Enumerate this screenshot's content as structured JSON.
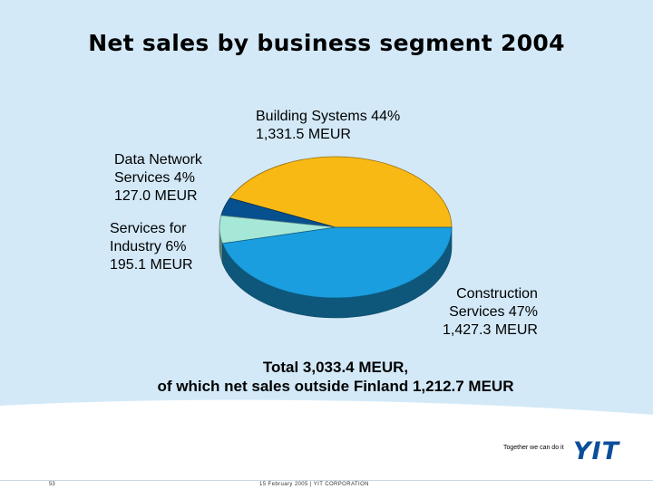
{
  "title": "Net sales by business segment 2004",
  "chart_data": {
    "type": "pie",
    "title": "Net sales by business segment 2004",
    "unit": "MEUR",
    "slices": [
      {
        "name": "Building Systems",
        "value": 1331.5,
        "percent": 44,
        "color": "#f9b915",
        "label_lines": [
          "Building Systems 44%",
          "1,331.5 MEUR"
        ]
      },
      {
        "name": "Construction Services",
        "value": 1427.3,
        "percent": 47,
        "color": "#1a9edf",
        "label_lines": [
          "Construction",
          "Services 47%",
          "1,427.3 MEUR"
        ]
      },
      {
        "name": "Services for Industry",
        "value": 195.1,
        "percent": 6,
        "color": "#a6e8d8",
        "label_lines": [
          "Services for",
          "Industry 6%",
          "195.1 MEUR"
        ]
      },
      {
        "name": "Data Network Services",
        "value": 127.0,
        "percent": 4,
        "color": "#07508f",
        "label_lines": [
          "Data Network",
          "Services 4%",
          "127.0 MEUR"
        ]
      }
    ]
  },
  "total": {
    "line1": "Total 3,033.4 MEUR,",
    "line2": "of which net sales outside Finland 1,212.7 MEUR"
  },
  "footer": {
    "tagline": "Together we can do it",
    "logo": "YIT",
    "page_number": "53",
    "date_company": "15 February 2005   |   YIT CORPORATION"
  }
}
